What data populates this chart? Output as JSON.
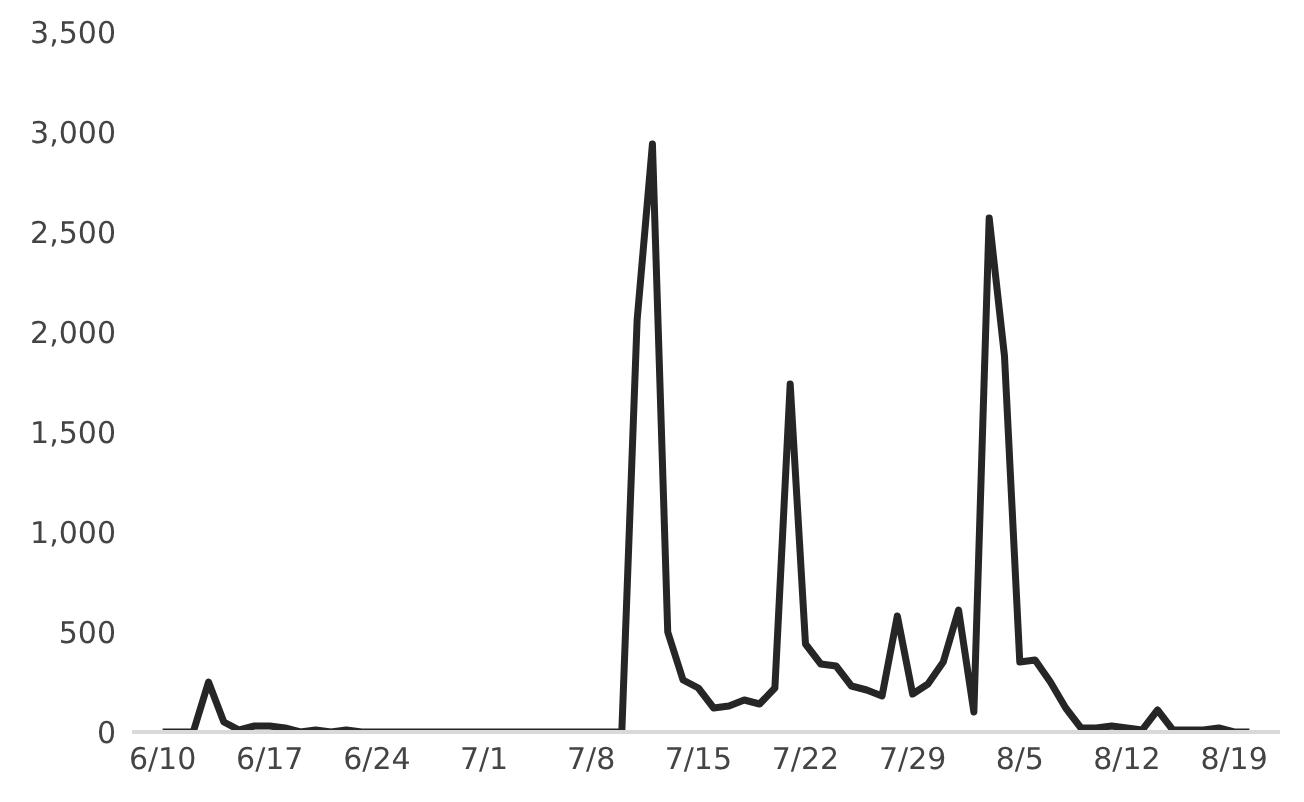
{
  "chart_data": {
    "type": "line",
    "x": [
      "--06-10",
      "--06-11",
      "--06-12",
      "--06-13",
      "--06-14",
      "--06-15",
      "--06-16",
      "--06-17",
      "--06-18",
      "--06-19",
      "--06-20",
      "--06-21",
      "--06-22",
      "--06-23",
      "--06-24",
      "--06-25",
      "--06-26",
      "--06-27",
      "--06-28",
      "--06-29",
      "--06-30",
      "--07-01",
      "--07-02",
      "--07-03",
      "--07-04",
      "--07-05",
      "--07-06",
      "--07-07",
      "--07-08",
      "--07-09",
      "--07-10",
      "--07-11",
      "--07-12",
      "--07-13",
      "--07-14",
      "--07-15",
      "--07-16",
      "--07-17",
      "--07-18",
      "--07-19",
      "--07-20",
      "--07-21",
      "--07-22",
      "--07-23",
      "--07-24",
      "--07-25",
      "--07-26",
      "--07-27",
      "--07-28",
      "--07-29",
      "--07-30",
      "--07-31",
      "--08-01",
      "--08-02",
      "--08-03",
      "--08-04",
      "--08-05",
      "--08-06",
      "--08-07",
      "--08-08",
      "--08-09",
      "--08-10",
      "--08-11",
      "--08-12",
      "--08-13",
      "--08-14",
      "--08-15",
      "--08-16",
      "--08-17",
      "--08-18",
      "--08-19",
      "--08-20"
    ],
    "series": [
      {
        "color": "#262626",
        "values": [
          0,
          0,
          0,
          250,
          50,
          10,
          30,
          30,
          20,
          0,
          10,
          0,
          10,
          0,
          0,
          0,
          0,
          0,
          0,
          0,
          0,
          0,
          0,
          0,
          0,
          0,
          0,
          0,
          0,
          0,
          0,
          2060,
          2940,
          500,
          260,
          220,
          120,
          130,
          160,
          140,
          220,
          1740,
          440,
          340,
          330,
          230,
          210,
          180,
          580,
          190,
          240,
          350,
          610,
          100,
          2570,
          1880,
          350,
          360,
          250,
          120,
          20,
          20,
          30,
          20,
          10,
          110,
          10,
          10,
          10,
          20,
          0,
          0
        ]
      }
    ],
    "xlim": [
      "--06-08",
      "--08-22"
    ],
    "xticks": [
      {
        "value": "--06-10",
        "label": "6/10"
      },
      {
        "value": "--06-17",
        "label": "6/17"
      },
      {
        "value": "--06-24",
        "label": "6/24"
      },
      {
        "value": "--07-01",
        "label": "7/1"
      },
      {
        "value": "--07-08",
        "label": "7/8"
      },
      {
        "value": "--07-15",
        "label": "7/15"
      },
      {
        "value": "--07-22",
        "label": "7/22"
      },
      {
        "value": "--07-29",
        "label": "7/29"
      },
      {
        "value": "--08-05",
        "label": "8/5"
      },
      {
        "value": "--08-12",
        "label": "8/12"
      },
      {
        "value": "--08-19",
        "label": "8/19"
      }
    ],
    "ylim": [
      0,
      3500
    ],
    "yticks": [
      0,
      {
        "value": 500,
        "label": "500"
      },
      {
        "value": 1000,
        "label": "1,000"
      },
      {
        "value": 1500,
        "label": "1,500"
      },
      {
        "value": 2000,
        "label": "2,000"
      },
      {
        "value": 2500,
        "label": "2,500"
      },
      {
        "value": 3000,
        "label": "3,000"
      },
      {
        "value": 3500,
        "label": "3,500"
      }
    ],
    "line_style": "solid"
  }
}
